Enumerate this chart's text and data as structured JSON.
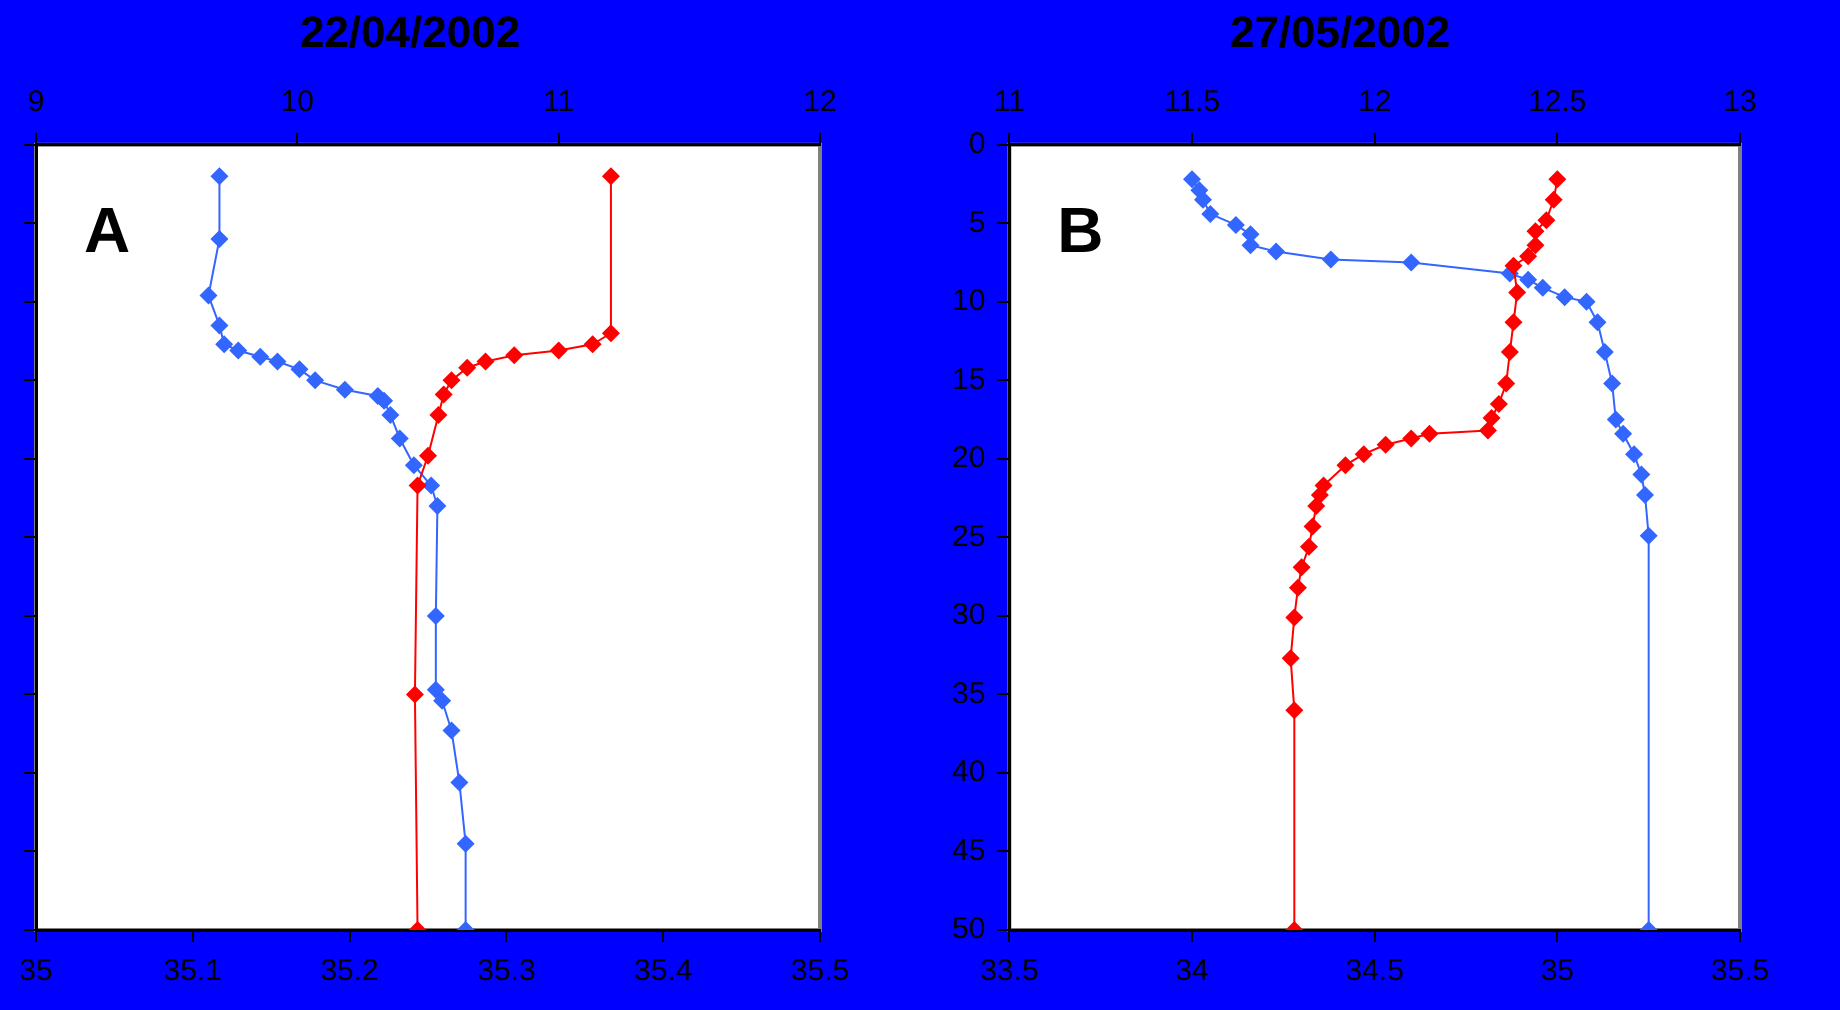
{
  "chart_data": [
    {
      "type": "line",
      "title": "22/04/2002",
      "annotations": [
        "A"
      ],
      "marker": "diamond",
      "grid": false,
      "legend": false,
      "tick_labels": "x",
      "xlim": [
        35,
        35.5
      ],
      "xticks": [
        {
          "value": 35,
          "label": "35"
        },
        35.1,
        35.2,
        35.3,
        35.4,
        35.5
      ],
      "x2lim": [
        9,
        12
      ],
      "x2ticks": [
        9,
        10,
        11,
        12
      ],
      "ylim": [
        50,
        0
      ],
      "yticks": [
        0,
        5,
        10,
        15,
        20,
        25,
        30,
        35,
        40,
        45,
        50
      ],
      "series": [
        {
          "color": "#ff0000",
          "axis": "x2",
          "x": [
            11.2,
            11.2,
            11.13,
            11.0,
            10.83,
            10.72,
            10.65,
            10.59,
            10.56,
            10.54,
            10.5,
            10.46,
            10.45,
            10.46
          ],
          "values": [
            2,
            12,
            12.7,
            13.1,
            13.4,
            13.8,
            14.2,
            15,
            15.9,
            17.2,
            19.8,
            21.7,
            35,
            50
          ]
        },
        {
          "color": "#3366ff",
          "x": [
            35.117,
            35.117,
            35.11,
            35.117,
            35.12,
            35.129,
            35.143,
            35.154,
            35.168,
            35.178,
            35.197,
            35.218,
            35.222,
            35.226,
            35.232,
            35.241,
            35.252,
            35.256,
            35.255,
            35.255,
            35.259,
            35.265,
            35.27,
            35.274,
            35.274
          ],
          "values": [
            2,
            6,
            9.6,
            11.5,
            12.7,
            13.1,
            13.5,
            13.8,
            14.3,
            15,
            15.6,
            16,
            16.3,
            17.2,
            18.7,
            20.4,
            21.7,
            23,
            30,
            34.7,
            35.4,
            37.3,
            40.6,
            44.5,
            50
          ]
        }
      ]
    },
    {
      "type": "line",
      "title": "27/05/2002",
      "annotations": [
        "B"
      ],
      "marker": "diamond",
      "grid": false,
      "legend": false,
      "xlim": [
        33.5,
        35.5
      ],
      "xticks": [
        33.5,
        34,
        34.5,
        35,
        35.5
      ],
      "x2lim": [
        11,
        13
      ],
      "x2ticks": [
        11,
        11.5,
        12,
        12.5,
        13
      ],
      "ylim": [
        50,
        0
      ],
      "yticks": [
        0,
        5,
        10,
        15,
        20,
        25,
        30,
        35,
        40,
        45,
        50
      ],
      "series": [
        {
          "color": "#ff0000",
          "axis": "x2",
          "x": [
            12.5,
            12.49,
            12.47,
            12.44,
            12.44,
            12.42,
            12.38,
            12.39,
            12.38,
            12.37,
            12.36,
            12.34,
            12.32,
            12.31,
            12.15,
            12.1,
            12.03,
            11.97,
            11.92,
            11.86,
            11.85,
            11.84,
            11.83,
            11.82,
            11.8,
            11.79,
            11.78,
            11.77,
            11.78,
            11.78
          ],
          "values": [
            2.2,
            3.5,
            4.8,
            5.5,
            6.4,
            7.1,
            7.7,
            9.4,
            11.3,
            13.2,
            15.2,
            16.5,
            17.4,
            18.2,
            18.4,
            18.7,
            19.1,
            19.7,
            20.4,
            21.7,
            22.3,
            23,
            24.3,
            25.6,
            26.9,
            28.2,
            30.1,
            32.7,
            36,
            50
          ]
        },
        {
          "color": "#3366ff",
          "x": [
            34.0,
            34.02,
            34.03,
            34.05,
            34.12,
            34.16,
            34.16,
            34.23,
            34.38,
            34.6,
            34.87,
            34.92,
            34.96,
            35.02,
            35.08,
            35.11,
            35.13,
            35.15,
            35.16,
            35.18,
            35.21,
            35.23,
            35.24,
            35.25,
            35.25
          ],
          "values": [
            2.2,
            2.9,
            3.5,
            4.4,
            5.1,
            5.7,
            6.4,
            6.8,
            7.3,
            7.5,
            8.2,
            8.6,
            9.1,
            9.7,
            10,
            11.3,
            13.2,
            15.2,
            17.5,
            18.4,
            19.7,
            21,
            22.3,
            24.9,
            50
          ]
        }
      ]
    }
  ]
}
